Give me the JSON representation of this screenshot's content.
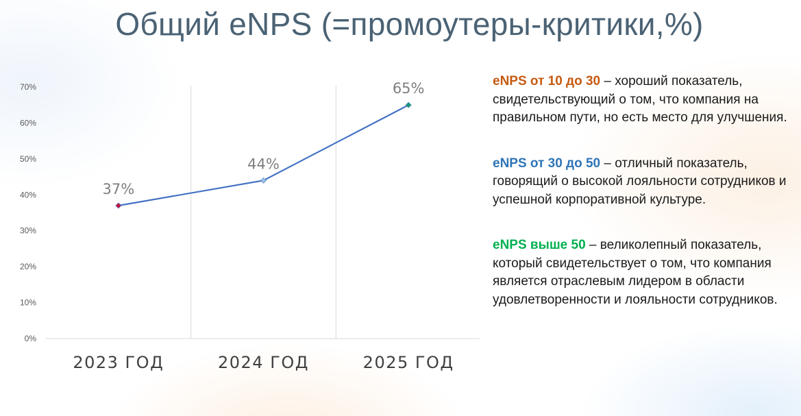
{
  "title": "Общий eNPS (=промоутеры-критики,%)",
  "chart_data": {
    "type": "line",
    "categories": [
      "2023 ГОД",
      "2024 ГОД",
      "2025 ГОД"
    ],
    "series": [
      {
        "values": [
          37,
          44,
          65
        ]
      }
    ],
    "data_labels": [
      "37%",
      "44%",
      "65%"
    ],
    "point_colors": [
      "#c0143c",
      "#9dc3e6",
      "#1a9b6e"
    ],
    "line_color": "#4472c4",
    "y_ticks": [
      "0%",
      "10%",
      "20%",
      "30%",
      "40%",
      "50%",
      "60%",
      "70%"
    ],
    "ylim": [
      0,
      70
    ],
    "grid": "vertical category separators",
    "legend": "none"
  },
  "notes": [
    {
      "highlight": "eNPS от 10 до 30",
      "text": " – хороший показатель, свидетельствующий о том, что компания на правильном пути, но есть место для улучшения.",
      "color": "#c55a11"
    },
    {
      "highlight": "eNPS от 30 до 50",
      "text": " – отличный показатель, говорящий о высокой лояльности сотрудников и успешной корпоративной культуре.",
      "color": "#2e75b6"
    },
    {
      "highlight": "eNPS выше 50",
      "text": " – великолепный показатель, который свидетельствует о том, что компания является отраслевым лидером в области удовлетворенности и лояльности сотрудников.",
      "color": "#00b050"
    }
  ]
}
